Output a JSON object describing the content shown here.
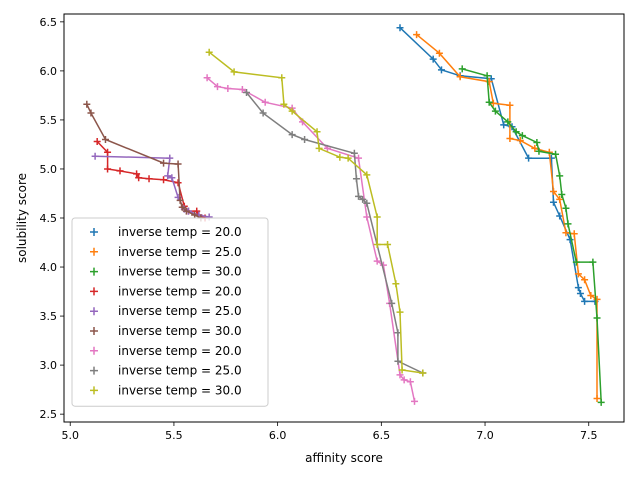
{
  "chart_data": {
    "type": "line",
    "title": "",
    "xlabel": "affinity score",
    "ylabel": "solubility score",
    "xlim": [
      4.97,
      7.67
    ],
    "ylim": [
      2.42,
      6.58
    ],
    "xticks": [
      5.0,
      5.5,
      6.0,
      6.5,
      7.0,
      7.5
    ],
    "yticks": [
      2.5,
      3.0,
      3.5,
      4.0,
      4.5,
      5.0,
      5.5,
      6.0,
      6.5
    ],
    "xtick_labels": [
      "5.0",
      "5.5",
      "6.0",
      "6.5",
      "7.0",
      "7.5"
    ],
    "ytick_labels": [
      "2.5",
      "3.0",
      "3.5",
      "4.0",
      "4.5",
      "5.0",
      "5.5",
      "6.0",
      "6.5"
    ],
    "grid": false,
    "legend_position": "lower-left",
    "marker": "+",
    "series": [
      {
        "name": "inverse temp = 20.0",
        "color": "#1f77b4",
        "points": [
          [
            6.59,
            6.44
          ],
          [
            6.75,
            6.12
          ],
          [
            6.79,
            6.01
          ],
          [
            6.88,
            5.95
          ],
          [
            7.03,
            5.92
          ],
          [
            7.09,
            5.45
          ],
          [
            7.13,
            5.43
          ],
          [
            7.21,
            5.11
          ],
          [
            7.32,
            5.11
          ],
          [
            7.33,
            4.66
          ],
          [
            7.36,
            4.52
          ],
          [
            7.41,
            4.28
          ],
          [
            7.45,
            3.79
          ],
          [
            7.46,
            3.73
          ],
          [
            7.48,
            3.65
          ],
          [
            7.53,
            3.65
          ]
        ]
      },
      {
        "name": "inverse temp = 25.0",
        "color": "#ff7f0e",
        "points": [
          [
            6.67,
            6.37
          ],
          [
            6.78,
            6.18
          ],
          [
            6.88,
            5.94
          ],
          [
            7.02,
            5.89
          ],
          [
            7.04,
            5.67
          ],
          [
            7.12,
            5.65
          ],
          [
            7.12,
            5.31
          ],
          [
            7.17,
            5.29
          ],
          [
            7.24,
            5.21
          ],
          [
            7.31,
            5.17
          ],
          [
            7.33,
            4.77
          ],
          [
            7.36,
            4.69
          ],
          [
            7.39,
            4.35
          ],
          [
            7.43,
            4.34
          ],
          [
            7.45,
            3.93
          ],
          [
            7.48,
            3.87
          ],
          [
            7.51,
            3.71
          ],
          [
            7.54,
            3.67
          ],
          [
            7.54,
            2.66
          ]
        ]
      },
      {
        "name": "inverse temp = 30.0",
        "color": "#2ca02c",
        "points": [
          [
            6.89,
            6.02
          ],
          [
            7.01,
            5.95
          ],
          [
            7.02,
            5.68
          ],
          [
            7.05,
            5.59
          ],
          [
            7.11,
            5.48
          ],
          [
            7.15,
            5.38
          ],
          [
            7.18,
            5.34
          ],
          [
            7.25,
            5.27
          ],
          [
            7.26,
            5.18
          ],
          [
            7.34,
            5.15
          ],
          [
            7.36,
            4.93
          ],
          [
            7.37,
            4.74
          ],
          [
            7.39,
            4.6
          ],
          [
            7.4,
            4.44
          ],
          [
            7.44,
            4.05
          ],
          [
            7.52,
            4.05
          ],
          [
            7.54,
            3.48
          ],
          [
            7.56,
            2.62
          ]
        ]
      },
      {
        "name": "inverse temp = 20.0",
        "color": "#d62728",
        "points": [
          [
            5.13,
            5.28
          ],
          [
            5.18,
            5.17
          ],
          [
            5.18,
            5.0
          ],
          [
            5.24,
            4.98
          ],
          [
            5.32,
            4.95
          ],
          [
            5.33,
            4.91
          ],
          [
            5.38,
            4.9
          ],
          [
            5.45,
            4.89
          ],
          [
            5.52,
            4.86
          ],
          [
            5.55,
            4.62
          ],
          [
            5.57,
            4.57
          ],
          [
            5.61,
            4.57
          ],
          [
            5.62,
            4.53
          ],
          [
            5.65,
            4.5
          ]
        ]
      },
      {
        "name": "inverse temp = 25.0",
        "color": "#9467bd",
        "points": [
          [
            5.12,
            5.13
          ],
          [
            5.48,
            5.11
          ],
          [
            5.47,
            4.93
          ],
          [
            5.49,
            4.91
          ],
          [
            5.52,
            4.71
          ],
          [
            5.55,
            4.59
          ],
          [
            5.57,
            4.57
          ],
          [
            5.62,
            4.53
          ],
          [
            5.67,
            4.51
          ]
        ]
      },
      {
        "name": "inverse temp = 30.0",
        "color": "#8c564b",
        "points": [
          [
            5.08,
            5.66
          ],
          [
            5.1,
            5.57
          ],
          [
            5.17,
            5.3
          ],
          [
            5.45,
            5.06
          ],
          [
            5.52,
            5.05
          ],
          [
            5.53,
            4.68
          ],
          [
            5.54,
            4.61
          ],
          [
            5.56,
            4.57
          ],
          [
            5.6,
            4.53
          ],
          [
            5.63,
            4.5
          ]
        ]
      },
      {
        "name": "inverse temp = 20.0",
        "color": "#e377c2",
        "points": [
          [
            5.66,
            5.93
          ],
          [
            5.71,
            5.84
          ],
          [
            5.76,
            5.82
          ],
          [
            5.83,
            5.81
          ],
          [
            5.94,
            5.68
          ],
          [
            6.07,
            5.62
          ],
          [
            6.12,
            5.48
          ],
          [
            6.24,
            5.21
          ],
          [
            6.39,
            5.11
          ],
          [
            6.43,
            4.51
          ],
          [
            6.48,
            4.06
          ],
          [
            6.51,
            4.02
          ],
          [
            6.54,
            3.63
          ],
          [
            6.59,
            2.9
          ],
          [
            6.61,
            2.85
          ],
          [
            6.64,
            2.83
          ],
          [
            6.66,
            2.63
          ]
        ]
      },
      {
        "name": "inverse temp = 25.0",
        "color": "#7f7f7f",
        "points": [
          [
            5.85,
            5.78
          ],
          [
            5.93,
            5.57
          ],
          [
            6.07,
            5.35
          ],
          [
            6.13,
            5.3
          ],
          [
            6.37,
            5.16
          ],
          [
            6.38,
            4.9
          ],
          [
            6.39,
            4.72
          ],
          [
            6.41,
            4.69
          ],
          [
            6.43,
            4.65
          ],
          [
            6.55,
            3.63
          ],
          [
            6.58,
            3.33
          ],
          [
            6.58,
            3.04
          ],
          [
            6.7,
            2.92
          ]
        ]
      },
      {
        "name": "inverse temp = 30.0",
        "color": "#bcbd22",
        "points": [
          [
            5.67,
            6.19
          ],
          [
            5.79,
            5.99
          ],
          [
            6.02,
            5.93
          ],
          [
            6.03,
            5.66
          ],
          [
            6.07,
            5.59
          ],
          [
            6.19,
            5.38
          ],
          [
            6.2,
            5.21
          ],
          [
            6.3,
            5.12
          ],
          [
            6.34,
            5.11
          ],
          [
            6.43,
            4.94
          ],
          [
            6.48,
            4.51
          ],
          [
            6.48,
            4.23
          ],
          [
            6.53,
            4.23
          ],
          [
            6.57,
            3.83
          ],
          [
            6.59,
            3.54
          ],
          [
            6.6,
            2.95
          ],
          [
            6.7,
            2.92
          ]
        ]
      }
    ]
  }
}
